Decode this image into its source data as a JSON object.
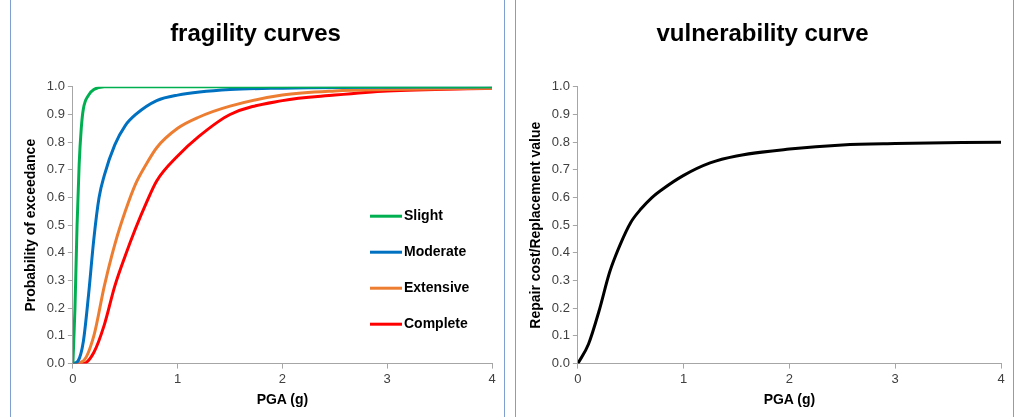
{
  "chart_data": [
    {
      "type": "line",
      "title": "fragility curves",
      "xlabel": "PGA (g)",
      "ylabel": "Probability of exceedance",
      "xlim": [
        0,
        4
      ],
      "xticks": [
        0,
        1,
        2,
        3,
        4
      ],
      "ylim": [
        0,
        1
      ],
      "yticks": [
        {
          "value": 0,
          "label": "0.0"
        },
        {
          "value": 0.1,
          "label": "0.1"
        },
        {
          "value": 0.2,
          "label": "0.2"
        },
        {
          "value": 0.3,
          "label": "0.3"
        },
        {
          "value": 0.4,
          "label": "0.4"
        },
        {
          "value": 0.5,
          "label": "0.5"
        },
        {
          "value": 0.6,
          "label": "0.6"
        },
        {
          "value": 0.7,
          "label": "0.7"
        },
        {
          "value": 0.8,
          "label": "0.8"
        },
        {
          "value": 0.9,
          "label": "0.9"
        },
        {
          "value": 1,
          "label": "1.0"
        }
      ],
      "grid": false,
      "legend": "right",
      "marker": "none",
      "line_style": "solid",
      "series": [
        {
          "name": "Slight",
          "color": "#00b050",
          "x": [
            0,
            0.02,
            0.04,
            0.06,
            0.08,
            0.1,
            0.15,
            0.2,
            0.3,
            0.5,
            4
          ],
          "values": [
            0,
            0.2,
            0.5,
            0.72,
            0.85,
            0.92,
            0.97,
            0.99,
            1,
            1,
            1
          ]
        },
        {
          "name": "Moderate",
          "color": "#0070c0",
          "x": [
            0,
            0.05,
            0.1,
            0.15,
            0.2,
            0.25,
            0.3,
            0.4,
            0.5,
            0.6,
            0.8,
            1,
            1.5,
            2,
            4
          ],
          "values": [
            0,
            0.01,
            0.08,
            0.25,
            0.45,
            0.6,
            0.68,
            0.79,
            0.86,
            0.9,
            0.95,
            0.97,
            0.99,
            0.995,
            1
          ]
        },
        {
          "name": "Extensive",
          "color": "#ed7d31",
          "x": [
            0,
            0.1,
            0.2,
            0.3,
            0.4,
            0.5,
            0.6,
            0.7,
            0.8,
            1,
            1.2,
            1.5,
            2,
            2.5,
            3,
            4
          ],
          "values": [
            0,
            0.01,
            0.1,
            0.28,
            0.43,
            0.55,
            0.65,
            0.72,
            0.78,
            0.85,
            0.89,
            0.93,
            0.97,
            0.985,
            0.99,
            0.995
          ]
        },
        {
          "name": "Complete",
          "color": "#ff0000",
          "x": [
            0,
            0.1,
            0.2,
            0.3,
            0.4,
            0.5,
            0.6,
            0.7,
            0.8,
            1,
            1.2,
            1.5,
            2,
            2.5,
            3,
            4
          ],
          "values": [
            0,
            0,
            0.04,
            0.14,
            0.28,
            0.39,
            0.49,
            0.58,
            0.66,
            0.75,
            0.82,
            0.9,
            0.95,
            0.97,
            0.985,
            0.995
          ]
        }
      ]
    },
    {
      "type": "line",
      "title": "vulnerability curve",
      "xlabel": "PGA (g)",
      "ylabel": "Repair cost/Replacement value",
      "xlim": [
        0,
        4
      ],
      "xticks": [
        0,
        1,
        2,
        3,
        4
      ],
      "ylim": [
        0,
        1
      ],
      "yticks": [
        {
          "value": 0,
          "label": "0.0"
        },
        {
          "value": 0.1,
          "label": "0.1"
        },
        {
          "value": 0.2,
          "label": "0.2"
        },
        {
          "value": 0.3,
          "label": "0.3"
        },
        {
          "value": 0.4,
          "label": "0.4"
        },
        {
          "value": 0.5,
          "label": "0.5"
        },
        {
          "value": 0.6,
          "label": "0.6"
        },
        {
          "value": 0.7,
          "label": "0.7"
        },
        {
          "value": 0.8,
          "label": "0.8"
        },
        {
          "value": 0.9,
          "label": "0.9"
        },
        {
          "value": 1,
          "label": "1.0"
        }
      ],
      "grid": false,
      "marker": "none",
      "line_style": "solid",
      "series": [
        {
          "color": "#000000",
          "x": [
            0,
            0.1,
            0.2,
            0.3,
            0.4,
            0.5,
            0.6,
            0.7,
            0.8,
            1,
            1.25,
            1.5,
            2,
            2.5,
            3,
            4
          ],
          "values": [
            0,
            0.07,
            0.19,
            0.33,
            0.43,
            0.51,
            0.56,
            0.6,
            0.63,
            0.68,
            0.725,
            0.75,
            0.775,
            0.79,
            0.795,
            0.8
          ]
        }
      ]
    }
  ]
}
